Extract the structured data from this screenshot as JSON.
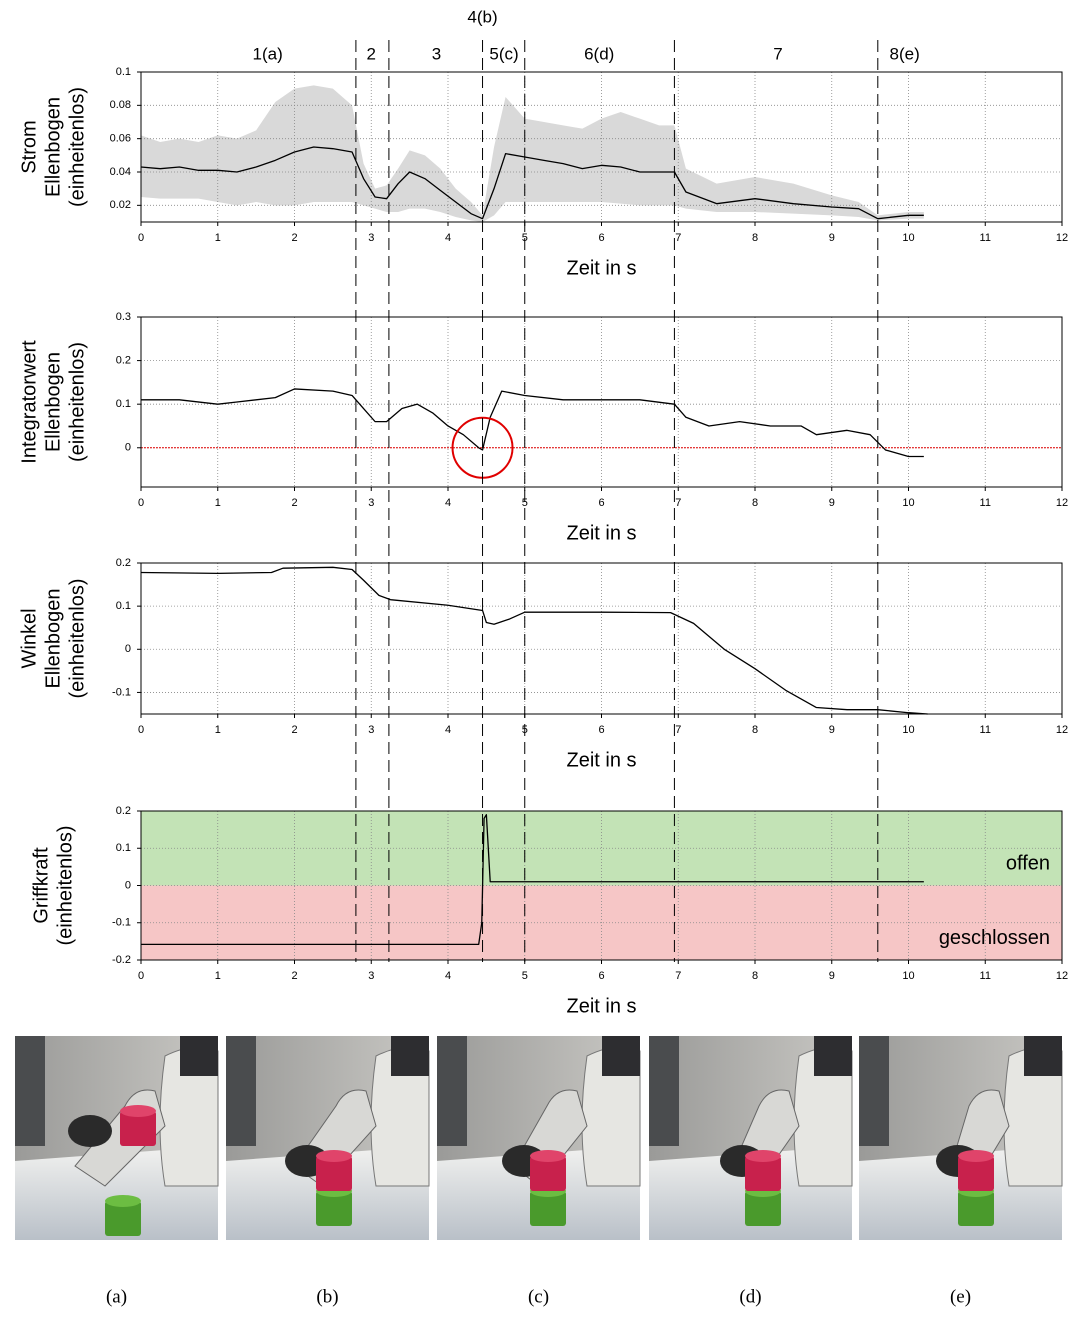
{
  "chart_data": [
    {
      "type": "line",
      "ylabel": [
        "Strom",
        "Ellenbogen",
        "(einheitenlos)"
      ],
      "xlabel": "Zeit in s",
      "x": [
        0,
        0.25,
        0.5,
        0.75,
        1,
        1.25,
        1.5,
        1.75,
        2,
        2.25,
        2.5,
        2.75,
        2.9,
        3.05,
        3.2,
        3.35,
        3.5,
        3.7,
        3.9,
        4.1,
        4.3,
        4.45,
        4.6,
        4.75,
        5,
        5.25,
        5.5,
        5.75,
        6,
        6.25,
        6.5,
        6.75,
        6.95,
        7.1,
        7.5,
        8,
        8.5,
        9,
        9.35,
        9.6,
        10,
        10.2
      ],
      "series": [
        {
          "color": "#000000",
          "values": [
            0.043,
            0.042,
            0.043,
            0.041,
            0.041,
            0.04,
            0.043,
            0.047,
            0.052,
            0.055,
            0.054,
            0.052,
            0.036,
            0.025,
            0.024,
            0.033,
            0.04,
            0.036,
            0.029,
            0.022,
            0.015,
            0.012,
            0.03,
            0.051,
            0.049,
            0.047,
            0.045,
            0.042,
            0.044,
            0.043,
            0.04,
            0.04,
            0.04,
            0.028,
            0.021,
            0.024,
            0.021,
            0.019,
            0.018,
            0.012,
            0.014,
            0.014
          ]
        }
      ],
      "band": {
        "color": "#d9d9d9",
        "upper": [
          0.062,
          0.058,
          0.06,
          0.058,
          0.062,
          0.06,
          0.065,
          0.082,
          0.09,
          0.092,
          0.09,
          0.08,
          0.045,
          0.03,
          0.032,
          0.042,
          0.053,
          0.05,
          0.042,
          0.03,
          0.022,
          0.014,
          0.055,
          0.085,
          0.072,
          0.07,
          0.068,
          0.066,
          0.072,
          0.076,
          0.072,
          0.068,
          0.068,
          0.042,
          0.033,
          0.037,
          0.033,
          0.026,
          0.022,
          0.014,
          0.016,
          0.016
        ],
        "lower": [
          0.025,
          0.024,
          0.024,
          0.024,
          0.022,
          0.02,
          0.022,
          0.02,
          0.02,
          0.022,
          0.022,
          0.022,
          0.02,
          0.018,
          0.016,
          0.016,
          0.018,
          0.018,
          0.016,
          0.013,
          0.011,
          0.01,
          0.014,
          0.022,
          0.022,
          0.022,
          0.022,
          0.022,
          0.022,
          0.021,
          0.02,
          0.02,
          0.02,
          0.018,
          0.016,
          0.016,
          0.015,
          0.014,
          0.013,
          0.011,
          0.012,
          0.012
        ]
      },
      "xlim": [
        0,
        12
      ],
      "xticks": [
        0,
        1,
        2,
        3,
        4,
        5,
        6,
        7,
        8,
        9,
        10,
        11,
        12
      ],
      "ylim": [
        0.01,
        0.1
      ],
      "yticks": [
        0.02,
        0.04,
        0.06,
        0.08,
        0.1
      ],
      "grid": true
    },
    {
      "type": "line",
      "ylabel": [
        "Integratorwert",
        "Ellenbogen",
        "(einheitenlos)"
      ],
      "xlabel": "Zeit in s",
      "x": [
        0,
        0.5,
        1,
        1.25,
        1.5,
        1.75,
        2,
        2.5,
        2.75,
        2.9,
        3.05,
        3.2,
        3.4,
        3.6,
        3.8,
        4,
        4.2,
        4.4,
        4.45,
        4.55,
        4.7,
        5,
        5.5,
        6,
        6.5,
        6.95,
        7.1,
        7.4,
        7.8,
        8.2,
        8.6,
        8.8,
        9.2,
        9.5,
        9.7,
        10,
        10.2
      ],
      "series": [
        {
          "color": "#000000",
          "values": [
            0.11,
            0.11,
            0.1,
            0.105,
            0.11,
            0.115,
            0.135,
            0.13,
            0.12,
            0.09,
            0.06,
            0.06,
            0.09,
            0.1,
            0.08,
            0.05,
            0.03,
            0.0,
            -0.005,
            0.07,
            0.13,
            0.12,
            0.11,
            0.11,
            0.11,
            0.1,
            0.07,
            0.05,
            0.06,
            0.05,
            0.05,
            0.03,
            0.04,
            0.03,
            -0.005,
            -0.02,
            -0.02
          ]
        }
      ],
      "reference_line": {
        "y": 0,
        "color": "#e00000"
      },
      "highlight": {
        "x": 4.45,
        "y": 0,
        "color": "#e00000"
      },
      "xlim": [
        0,
        12
      ],
      "xticks": [
        0,
        1,
        2,
        3,
        4,
        5,
        6,
        7,
        8,
        9,
        10,
        11,
        12
      ],
      "ylim": [
        -0.09,
        0.3
      ],
      "yticks": [
        0,
        0.1,
        0.2,
        0.3
      ],
      "grid": true
    },
    {
      "type": "line",
      "ylabel": [
        "Winkel",
        "Ellenbogen",
        "(einheitenlos)"
      ],
      "xlabel": "Zeit in s",
      "x": [
        0,
        1,
        1.7,
        1.85,
        2.5,
        2.75,
        2.9,
        3.1,
        3.25,
        4,
        4.45,
        4.5,
        4.6,
        4.8,
        5,
        6,
        6.9,
        7.2,
        7.6,
        8,
        8.4,
        8.8,
        9.2,
        9.6,
        10,
        10.25
      ],
      "series": [
        {
          "color": "#000000",
          "values": [
            0.178,
            0.176,
            0.178,
            0.188,
            0.19,
            0.185,
            0.16,
            0.125,
            0.115,
            0.102,
            0.09,
            0.062,
            0.058,
            0.07,
            0.086,
            0.086,
            0.085,
            0.06,
            0.0,
            -0.045,
            -0.095,
            -0.135,
            -0.14,
            -0.14,
            -0.147,
            -0.15
          ]
        }
      ],
      "xlim": [
        0,
        12
      ],
      "xticks": [
        0,
        1,
        2,
        3,
        4,
        5,
        6,
        7,
        8,
        9,
        10,
        11,
        12
      ],
      "ylim": [
        -0.15,
        0.2
      ],
      "yticks": [
        -0.1,
        0,
        0.1,
        0.2
      ],
      "grid": true
    },
    {
      "type": "line",
      "ylabel": [
        "Griffkraft",
        "(einheitenlos)"
      ],
      "xlabel": "Zeit in s",
      "x": [
        0,
        4.4,
        4.44,
        4.47,
        4.5,
        4.55,
        4.6,
        10.2
      ],
      "series": [
        {
          "color": "#000000",
          "values": [
            -0.158,
            -0.158,
            -0.1,
            0.18,
            0.19,
            0.01,
            0.01,
            0.01
          ]
        }
      ],
      "regions": [
        {
          "label": "offen",
          "from": 0,
          "to": 0.2,
          "color": "#c3e3b6"
        },
        {
          "label": "geschlossen",
          "from": -0.2,
          "to": 0,
          "color": "#f6c6c6"
        }
      ],
      "xlim": [
        0,
        12
      ],
      "xticks": [
        0,
        1,
        2,
        3,
        4,
        5,
        6,
        7,
        8,
        9,
        10,
        11,
        12
      ],
      "ylim": [
        -0.2,
        0.2
      ],
      "yticks": [
        -0.2,
        -0.1,
        0,
        0.1,
        0.2
      ],
      "grid": true
    }
  ],
  "phase_boundaries": [
    2.8,
    3.23,
    4.45,
    5.0,
    6.95,
    9.6
  ],
  "phases": [
    {
      "label": "1(a)",
      "x": 1.65
    },
    {
      "label": "2",
      "x": 3.0
    },
    {
      "label": "3",
      "x": 3.85
    },
    {
      "label": "4(b)",
      "x": 4.45
    },
    {
      "label": "5(c)",
      "x": 4.73
    },
    {
      "label": "6(d)",
      "x": 5.97
    },
    {
      "label": "7",
      "x": 8.3
    },
    {
      "label": "8(e)",
      "x": 9.95
    }
  ],
  "photos": {
    "captions": [
      "(a)",
      "(b)",
      "(c)",
      "(d)",
      "(e)"
    ]
  }
}
